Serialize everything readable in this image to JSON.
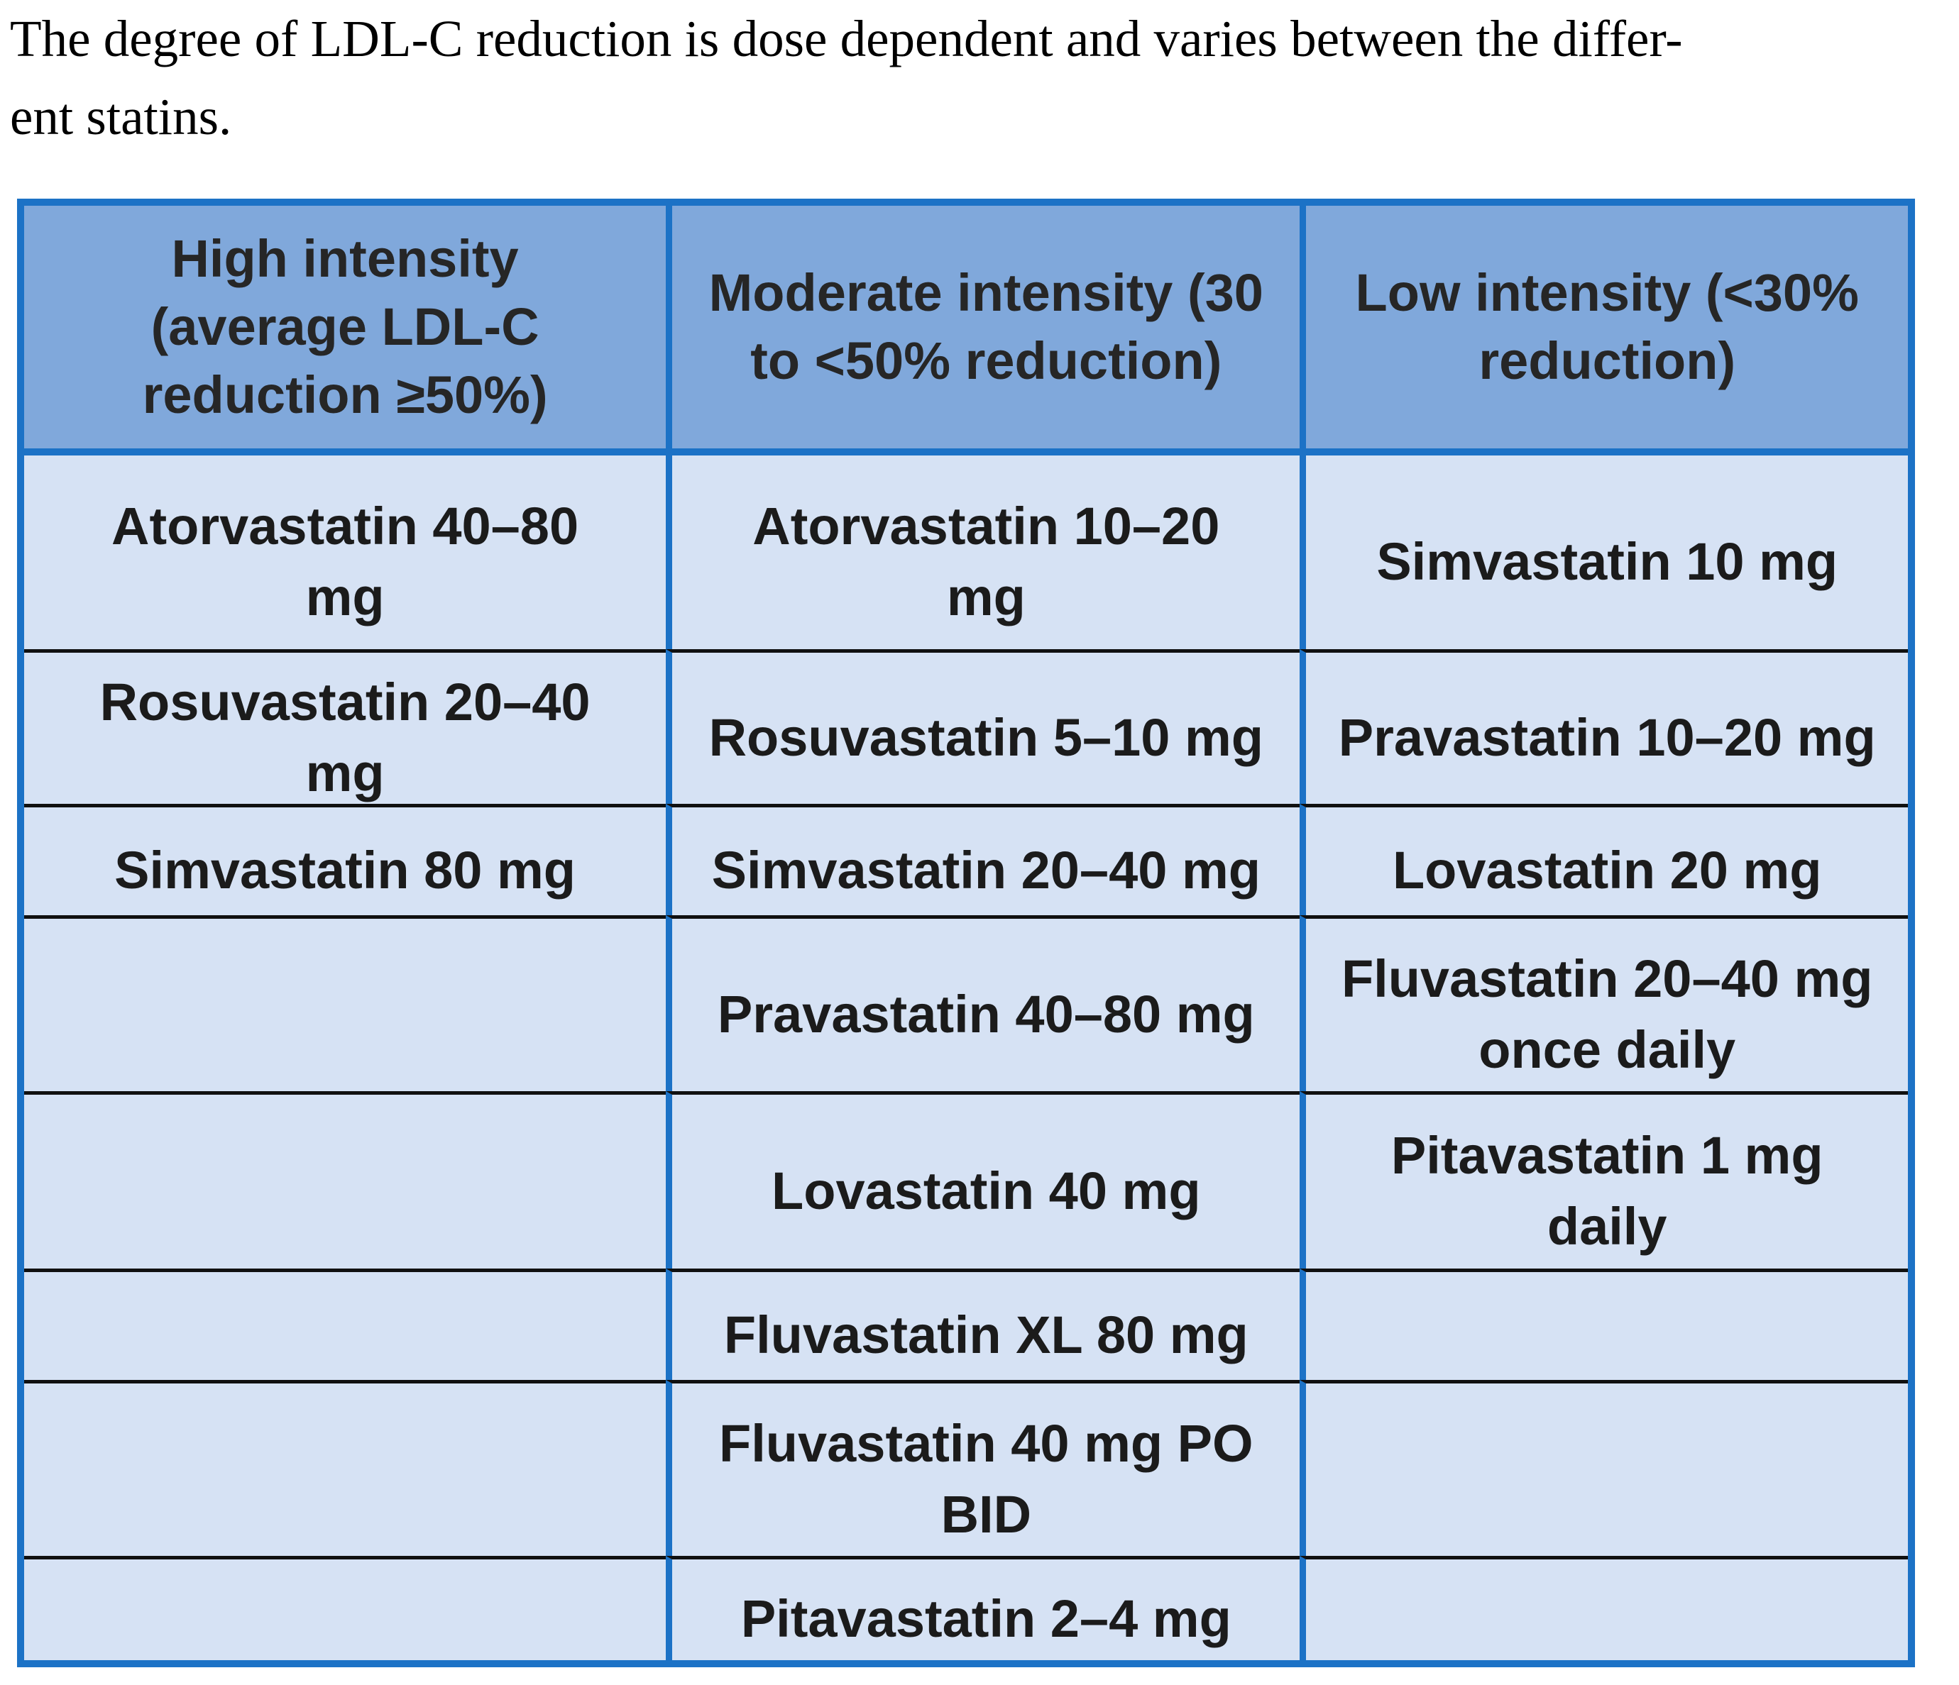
{
  "intro": {
    "text": "The degree of LDL-C reduction is dose dependent and varies between the differ-\nent statins."
  },
  "table": {
    "headers": [
      "High intensity\n(average LDL-C\nreduction ≥50%)",
      "Moderate intensity (30\nto <50% reduction)",
      "Low intensity (<30%\nreduction)"
    ],
    "rows": [
      [
        "Atorvastatin 40–80\nmg",
        "Atorvastatin 10–20\nmg",
        "Simvastatin 10 mg"
      ],
      [
        "Rosuvastatin 20–40\nmg",
        "Rosuvastatin 5–10 mg",
        "Pravastatin 10–20 mg"
      ],
      [
        "Simvastatin 80 mg",
        "Simvastatin 20–40 mg",
        "Lovastatin 20 mg"
      ],
      [
        "",
        "Pravastatin 40–80 mg",
        "Fluvastatin 20–40 mg\nonce daily"
      ],
      [
        "",
        "Lovastatin 40 mg",
        "Pitavastatin 1 mg\ndaily"
      ],
      [
        "",
        "Fluvastatin XL 80 mg",
        ""
      ],
      [
        "",
        "Fluvastatin 40 mg PO\nBID",
        ""
      ],
      [
        "",
        "Pitavastatin 2–4 mg",
        ""
      ]
    ],
    "colors": {
      "header_bg": "#80A8DB",
      "cell_bg": "#D6E2F4",
      "grid_blue": "#1C72C6",
      "row_line": "#101010"
    }
  }
}
